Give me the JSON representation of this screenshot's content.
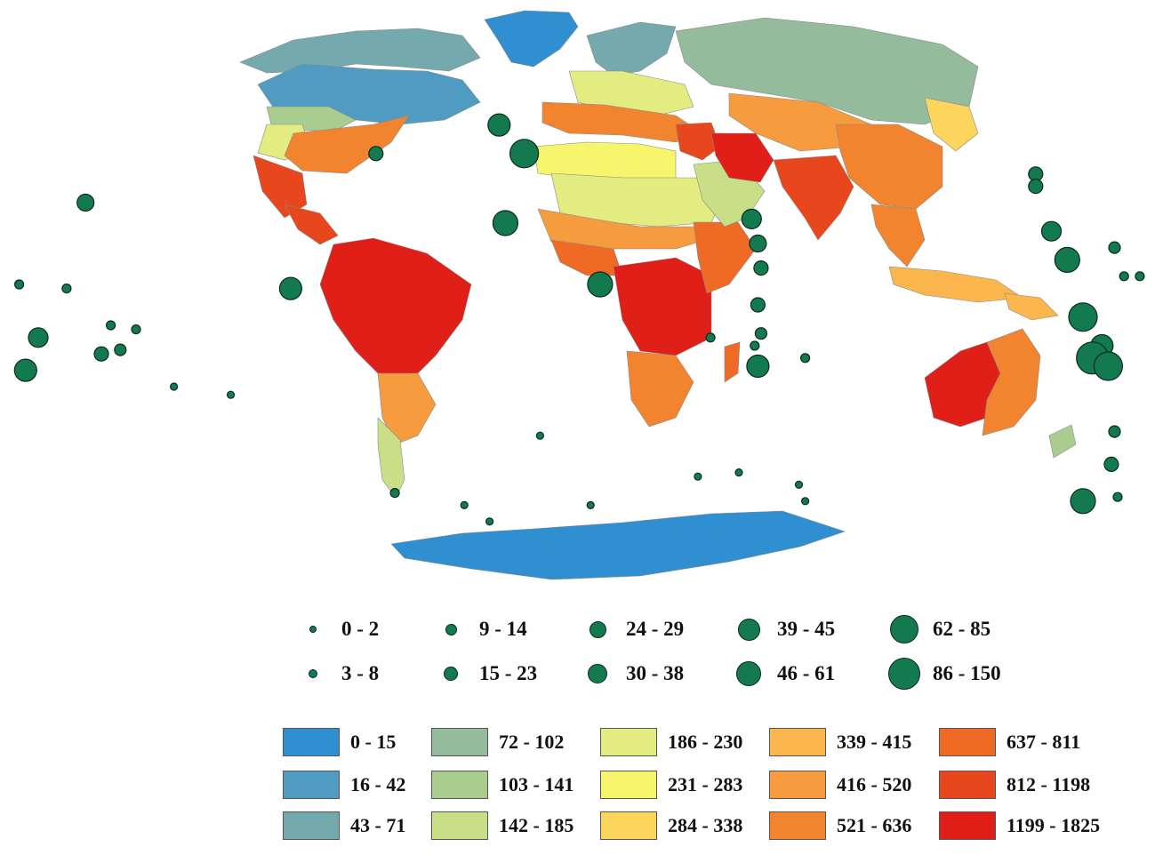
{
  "map": {
    "marker_color": "#137a4f",
    "marker_stroke": "#0b2a1c",
    "ocean_color": "#ffffff",
    "regions": [
      {
        "name": "greenland",
        "class_index": 0
      },
      {
        "name": "antarctica",
        "class_index": 0
      },
      {
        "name": "arctic-islands",
        "class_index": 2
      },
      {
        "name": "canada",
        "class_index": 1
      },
      {
        "name": "usa-north",
        "class_index": 4
      },
      {
        "name": "usa-west",
        "class_index": 6
      },
      {
        "name": "usa-south",
        "class_index": 11
      },
      {
        "name": "mexico",
        "class_index": 13
      },
      {
        "name": "central-america",
        "class_index": 13
      },
      {
        "name": "south-america-north",
        "class_index": 14
      },
      {
        "name": "south-america-south",
        "class_index": 10
      },
      {
        "name": "patagonia",
        "class_index": 5
      },
      {
        "name": "scandinavia",
        "class_index": 2
      },
      {
        "name": "russia",
        "class_index": 3
      },
      {
        "name": "europe",
        "class_index": 6
      },
      {
        "name": "mediterranean",
        "class_index": 11
      },
      {
        "name": "north-africa",
        "class_index": 7
      },
      {
        "name": "sahara",
        "class_index": 6
      },
      {
        "name": "sahel",
        "class_index": 10
      },
      {
        "name": "west-africa",
        "class_index": 12
      },
      {
        "name": "central-africa",
        "class_index": 14
      },
      {
        "name": "east-africa",
        "class_index": 12
      },
      {
        "name": "southern-africa",
        "class_index": 11
      },
      {
        "name": "madagascar",
        "class_index": 12
      },
      {
        "name": "arabia",
        "class_index": 5
      },
      {
        "name": "middle-east",
        "class_index": 13
      },
      {
        "name": "iran",
        "class_index": 14
      },
      {
        "name": "central-asia",
        "class_index": 10
      },
      {
        "name": "india",
        "class_index": 13
      },
      {
        "name": "china",
        "class_index": 11
      },
      {
        "name": "east-asia",
        "class_index": 8
      },
      {
        "name": "southeast-asia",
        "class_index": 11
      },
      {
        "name": "indonesia",
        "class_index": 9
      },
      {
        "name": "new-guinea",
        "class_index": 9
      },
      {
        "name": "australia-west",
        "class_index": 14
      },
      {
        "name": "australia-east",
        "class_index": 11
      },
      {
        "name": "new-zealand",
        "class_index": 4
      }
    ],
    "markers": [
      {
        "class_index": 6,
        "lon": -25,
        "lat": 39
      },
      {
        "class_index": 8,
        "lon": -17,
        "lat": 32
      },
      {
        "class_index": 7,
        "lon": -23,
        "lat": 15
      },
      {
        "class_index": 3,
        "lon": -64,
        "lat": 32
      },
      {
        "class_index": 4,
        "lon": -156,
        "lat": 20
      },
      {
        "class_index": 6,
        "lon": -91,
        "lat": -1
      },
      {
        "class_index": 7,
        "lon": 7,
        "lat": 0
      },
      {
        "class_index": 5,
        "lon": 55,
        "lat": 16
      },
      {
        "class_index": 4,
        "lon": 57,
        "lat": 10
      },
      {
        "class_index": 3,
        "lon": 58,
        "lat": 4
      },
      {
        "class_index": 3,
        "lon": 57,
        "lat": -5
      },
      {
        "class_index": 2,
        "lon": 58,
        "lat": -12
      },
      {
        "class_index": 1,
        "lon": 56,
        "lat": -15
      },
      {
        "class_index": 1,
        "lon": 42,
        "lat": -13
      },
      {
        "class_index": 6,
        "lon": 57,
        "lat": -20
      },
      {
        "class_index": 1,
        "lon": 72,
        "lat": -18
      },
      {
        "class_index": 3,
        "lon": 145,
        "lat": 27
      },
      {
        "class_index": 3,
        "lon": 145,
        "lat": 24
      },
      {
        "class_index": 5,
        "lon": 150,
        "lat": 13
      },
      {
        "class_index": 7,
        "lon": 155,
        "lat": 6
      },
      {
        "class_index": 2,
        "lon": 170,
        "lat": 9
      },
      {
        "class_index": 1,
        "lon": 173,
        "lat": 2
      },
      {
        "class_index": 1,
        "lon": 178,
        "lat": 2
      },
      {
        "class_index": 8,
        "lon": 160,
        "lat": -8
      },
      {
        "class_index": 6,
        "lon": 166,
        "lat": -15
      },
      {
        "class_index": 9,
        "lon": 163,
        "lat": -18
      },
      {
        "class_index": 8,
        "lon": 168,
        "lat": -20
      },
      {
        "class_index": 3,
        "lon": 169,
        "lat": -44
      },
      {
        "class_index": 2,
        "lon": 170,
        "lat": -36
      },
      {
        "class_index": 7,
        "lon": 160,
        "lat": -53
      },
      {
        "class_index": 1,
        "lon": 171,
        "lat": -52
      },
      {
        "class_index": 1,
        "lon": -177,
        "lat": 0
      },
      {
        "class_index": 1,
        "lon": -162,
        "lat": -1
      },
      {
        "class_index": 1,
        "lon": -148,
        "lat": -10
      },
      {
        "class_index": 1,
        "lon": -140,
        "lat": -11
      },
      {
        "class_index": 5,
        "lon": -171,
        "lat": -13
      },
      {
        "class_index": 6,
        "lon": -175,
        "lat": -21
      },
      {
        "class_index": 3,
        "lon": -151,
        "lat": -17
      },
      {
        "class_index": 2,
        "lon": -145,
        "lat": -16
      },
      {
        "class_index": 0,
        "lon": -128,
        "lat": -25
      },
      {
        "class_index": 0,
        "lon": -110,
        "lat": -27
      },
      {
        "class_index": 1,
        "lon": -58,
        "lat": -51
      },
      {
        "class_index": 0,
        "lon": -36,
        "lat": -54
      },
      {
        "class_index": 0,
        "lon": -12,
        "lat": -37
      },
      {
        "class_index": 0,
        "lon": -28,
        "lat": -58
      },
      {
        "class_index": 0,
        "lon": 4,
        "lat": -54
      },
      {
        "class_index": 0,
        "lon": 38,
        "lat": -47
      },
      {
        "class_index": 0,
        "lon": 51,
        "lat": -46
      },
      {
        "class_index": 0,
        "lon": 70,
        "lat": -49
      },
      {
        "class_index": 0,
        "lon": 72,
        "lat": -53
      }
    ]
  },
  "circle_legend": {
    "items": [
      {
        "label": "0 - 2",
        "size": 1
      },
      {
        "label": "3 - 8",
        "size": 2
      },
      {
        "label": "9 - 14",
        "size": 3
      },
      {
        "label": "15 - 23",
        "size": 4
      },
      {
        "label": "24 - 29",
        "size": 5
      },
      {
        "label": "30 - 38",
        "size": 6
      },
      {
        "label": "39 - 45",
        "size": 7
      },
      {
        "label": "46 - 61",
        "size": 8
      },
      {
        "label": "62 - 85",
        "size": 9
      },
      {
        "label": "86 - 150",
        "size": 10
      }
    ]
  },
  "color_legend": {
    "items": [
      {
        "label": "0 - 15",
        "color": "#2f8fd0"
      },
      {
        "label": "16 - 42",
        "color": "#4f9bc2"
      },
      {
        "label": "43 - 71",
        "color": "#74a9ad"
      },
      {
        "label": "72 - 102",
        "color": "#93bb9c"
      },
      {
        "label": "103 - 141",
        "color": "#a9cc8f"
      },
      {
        "label": "142 - 185",
        "color": "#c8df88"
      },
      {
        "label": "186 - 230",
        "color": "#e3ec80"
      },
      {
        "label": "231 - 283",
        "color": "#f6f56b"
      },
      {
        "label": "284 - 338",
        "color": "#fcd55c"
      },
      {
        "label": "339 - 415",
        "color": "#fbb74d"
      },
      {
        "label": "416 - 520",
        "color": "#f79b3f"
      },
      {
        "label": "521 - 636",
        "color": "#f3842f"
      },
      {
        "label": "637 - 811",
        "color": "#ef6a25"
      },
      {
        "label": "812 - 1198",
        "color": "#e8461c"
      },
      {
        "label": "1199 - 1825",
        "color": "#df1f18"
      }
    ]
  }
}
